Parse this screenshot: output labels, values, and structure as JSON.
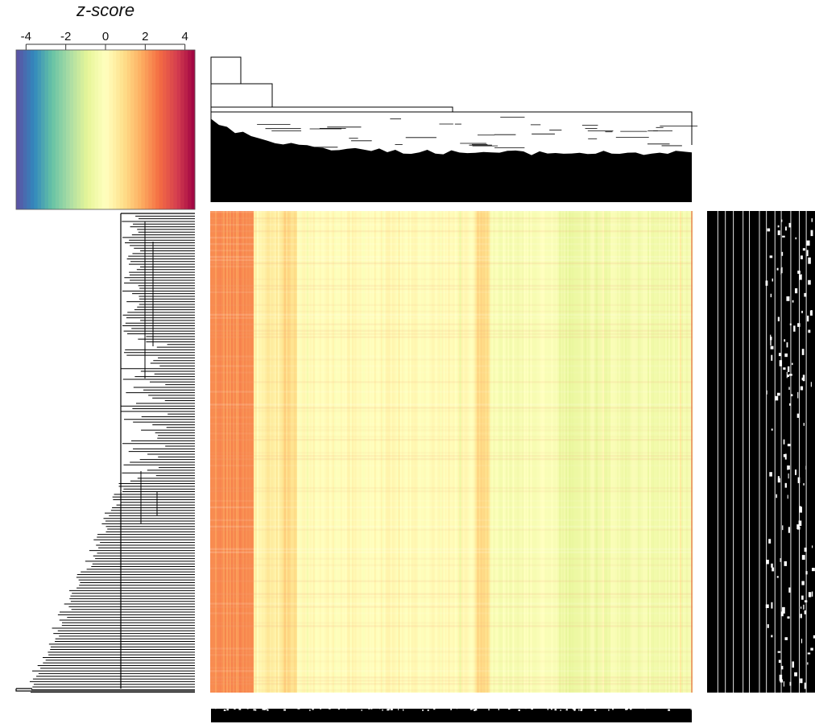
{
  "chart_data": {
    "type": "heatmap",
    "title": "",
    "legend": {
      "title": "z-score",
      "ticks": [
        -4,
        -2,
        0,
        2,
        4
      ],
      "range": [
        -4.5,
        4.5
      ],
      "placement": "top-left",
      "colors": [
        "#5E4FA2",
        "#3288BD",
        "#66C2A5",
        "#ABDDA4",
        "#E6F598",
        "#FFFFBF",
        "#FEE08B",
        "#FDAE61",
        "#F46D43",
        "#D53E4F",
        "#9E0142"
      ]
    },
    "column_dendrogram": true,
    "row_dendrogram": true,
    "row_labels_visible": "overplotted, illegible",
    "column_labels_visible": "overplotted, illegible",
    "column_profile_zscore": [
      {
        "from": 0.0,
        "to": 0.09,
        "z": 2.2
      },
      {
        "from": 0.09,
        "to": 0.15,
        "z": 0.5
      },
      {
        "from": 0.15,
        "to": 0.18,
        "z": 1.0
      },
      {
        "from": 0.18,
        "to": 0.55,
        "z": 0.1
      },
      {
        "from": 0.55,
        "to": 0.58,
        "z": 0.9
      },
      {
        "from": 0.58,
        "to": 0.72,
        "z": -0.2
      },
      {
        "from": 0.72,
        "to": 0.78,
        "z": -0.6
      },
      {
        "from": 0.78,
        "to": 1.0,
        "z": -0.4
      }
    ]
  }
}
